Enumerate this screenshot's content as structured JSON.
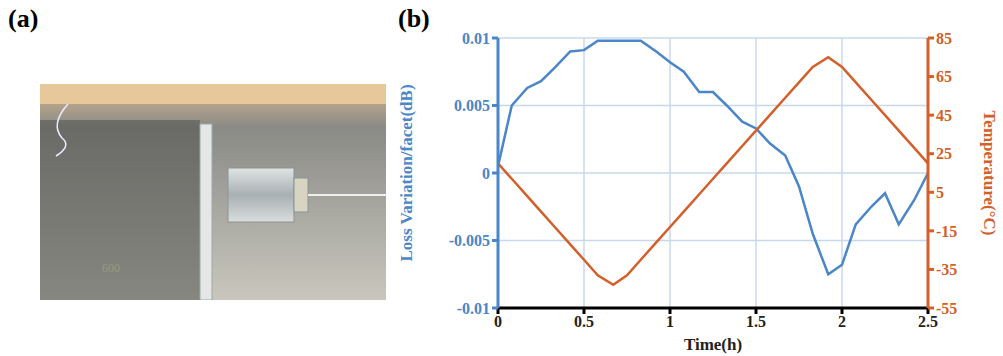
{
  "panel_labels": [
    "(a)",
    "(b)"
  ],
  "photo_text": "600",
  "chart_data": {
    "type": "line",
    "x_label": "Time(h)",
    "y_label": "Loss Variation/facet(dB)",
    "y2_label": "Temperature(°C)",
    "x": [
      0,
      0.08,
      0.17,
      0.25,
      0.33,
      0.42,
      0.5,
      0.58,
      0.67,
      0.75,
      0.83,
      0.92,
      1,
      1.08,
      1.17,
      1.25,
      1.33,
      1.42,
      1.5,
      1.58,
      1.67,
      1.75,
      1.83,
      1.92,
      2,
      2.08,
      2.17,
      2.25,
      2.33,
      2.42,
      2.5
    ],
    "series": [
      {
        "color": "#4a86c8",
        "values": [
          0.0005,
          0.005,
          0.0063,
          0.0068,
          0.0078,
          0.009,
          0.0091,
          0.0098,
          0.0098,
          0.0098,
          0.0098,
          0.009,
          0.0082,
          0.0075,
          0.006,
          0.006,
          0.005,
          0.0038,
          0.0033,
          0.0022,
          0.0013,
          -0.001,
          -0.0045,
          -0.0075,
          -0.0068,
          -0.0038,
          -0.0025,
          -0.0015,
          -0.0038,
          -0.002,
          0
        ]
      },
      {
        "color": "#d35f2a",
        "axis": "y2",
        "values": [
          20,
          12,
          3,
          -5,
          -13,
          -22,
          -30,
          -38,
          -43,
          -38,
          -30,
          -21,
          -13,
          -5,
          4,
          12,
          20,
          29,
          37,
          45,
          54,
          62,
          70,
          75,
          70,
          62,
          53,
          45,
          37,
          28,
          20
        ]
      }
    ],
    "xlim": [
      0,
      2.5
    ],
    "xticks": [
      0,
      0.5,
      1,
      1.5,
      2,
      2.5
    ],
    "ylim": [
      -0.01,
      0.01
    ],
    "yticks": [
      -0.01,
      -0.005,
      0,
      0.005,
      0.01
    ],
    "y2lim": [
      -55,
      85
    ],
    "y2ticks": [
      -55,
      -35,
      -15,
      5,
      25,
      45,
      65,
      85
    ],
    "grid": true
  }
}
